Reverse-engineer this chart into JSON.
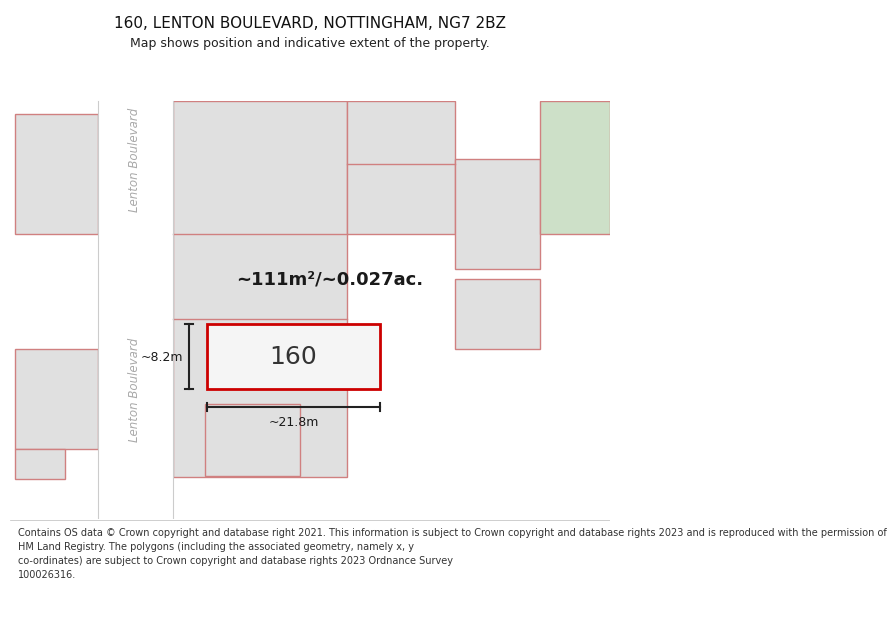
{
  "title_line1": "160, LENTON BOULEVARD, NOTTINGHAM, NG7 2BZ",
  "title_line2": "Map shows position and indicative extent of the property.",
  "footer_lines": [
    "Contains OS data © Crown copyright and database right 2021. This information is subject to Crown copyright and database rights 2023 and is reproduced with the permission of",
    "HM Land Registry. The polygons (including the associated geometry, namely x, y",
    "co-ordinates) are subject to Crown copyright and database rights 2023 Ordnance Survey",
    "100026316."
  ],
  "bg_color": "#ffffff",
  "map_bg": "#ececec",
  "road_color": "#ffffff",
  "plot_outline_color": "#d08080",
  "highlight_color": "#cc0000",
  "highlight_fill": "#f5f5f5",
  "dim_line_color": "#222222",
  "area_text": "~111m²/~0.027ac.",
  "number_text": "160",
  "dim_width": "~21.8m",
  "dim_height": "~8.2m",
  "street_label": "Lenton Boulevard",
  "green_area_color": "#cde0c8",
  "plot_fill": "#e0e0e0"
}
